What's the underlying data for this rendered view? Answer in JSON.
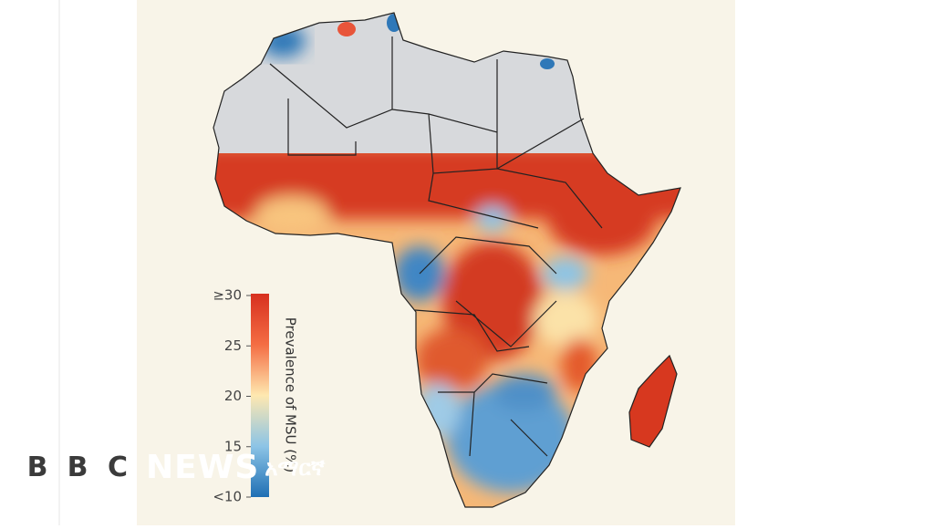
{
  "legend": {
    "title": "Prevalence of MSU (%)",
    "range": [
      10,
      30
    ],
    "ticks": [
      {
        "value": 30,
        "label": "≥30"
      },
      25,
      20,
      15,
      {
        "value": 10,
        "label": "<10"
      }
    ]
  },
  "watermark": {
    "letters": [
      "B",
      "B",
      "C"
    ],
    "brand": "NEWS",
    "service": "አማርኛ"
  }
}
